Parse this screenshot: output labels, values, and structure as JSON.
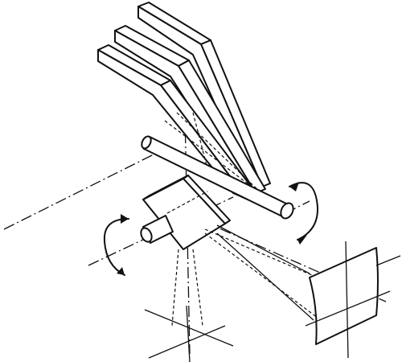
{
  "figure": {
    "kind": "isometric line drawing",
    "description_labels": [],
    "colors": {
      "ink": "#111111",
      "paper": "#ffffff"
    },
    "parts": [
      "mirror-array",
      "horizontal-axle",
      "prism-block",
      "prism-axle",
      "screen",
      "crosshair",
      "rotation-arrow-axle",
      "rotation-arrow-prism"
    ]
  }
}
